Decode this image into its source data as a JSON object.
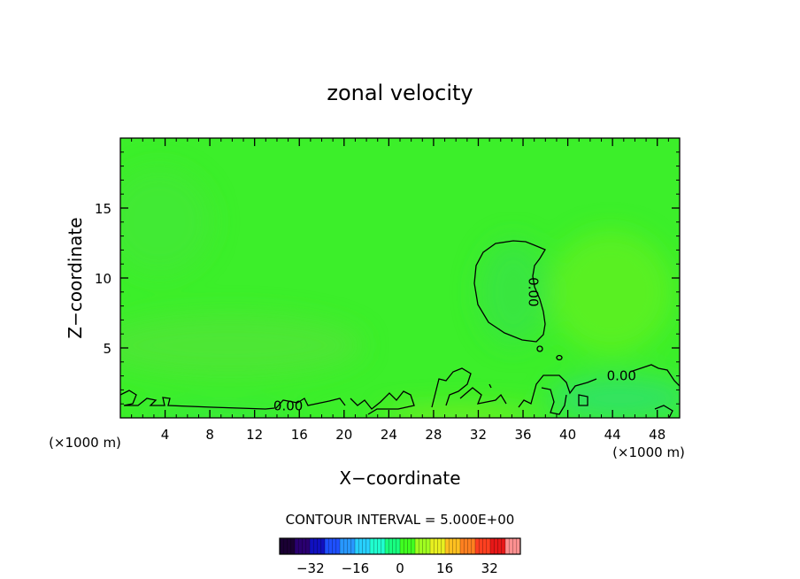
{
  "chart_data": {
    "type": "heatmap",
    "title": "zonal velocity",
    "xlabel": "X−coordinate",
    "ylabel": "Z−coordinate",
    "x_unit_left": "(×1000 m)",
    "x_unit_right": "(×1000 m)",
    "xlim": [
      0,
      50
    ],
    "ylim": [
      0,
      20
    ],
    "x_ticks": [
      4,
      8,
      12,
      16,
      20,
      24,
      28,
      32,
      36,
      40,
      44,
      48
    ],
    "x_tick_labels": [
      "4",
      "8",
      "12",
      "16",
      "20",
      "24",
      "28",
      "32",
      "36",
      "40",
      "44",
      "48"
    ],
    "y_ticks": [
      5,
      10,
      15
    ],
    "y_tick_labels": [
      "5",
      "10",
      "15"
    ],
    "contour_labels": [
      {
        "text": "0.00",
        "x": 15.0,
        "z": 0.85
      },
      {
        "text": "0.00",
        "x": 36.9,
        "z": 9.0
      },
      {
        "text": "0.00",
        "x": 44.8,
        "z": 3.0
      }
    ],
    "contour_interval_label": "CONTOUR INTERVAL = 5.000E+00",
    "colorbar": {
      "range": [
        -43,
        43
      ],
      "ticks": [
        -32,
        -16,
        0,
        16,
        32
      ],
      "tick_labels": [
        "−32",
        "−16",
        "0",
        "16",
        "32"
      ],
      "colors": [
        "#1a0033",
        "#2a0070",
        "#1010c0",
        "#1e50ff",
        "#2898ff",
        "#28d0ff",
        "#20ffd0",
        "#18ff80",
        "#40ff20",
        "#a0ff20",
        "#e8f020",
        "#ffc020",
        "#ff8020",
        "#ff4020",
        "#e81818",
        "#ff9090"
      ]
    },
    "field_base_color": "#3cef2a"
  }
}
